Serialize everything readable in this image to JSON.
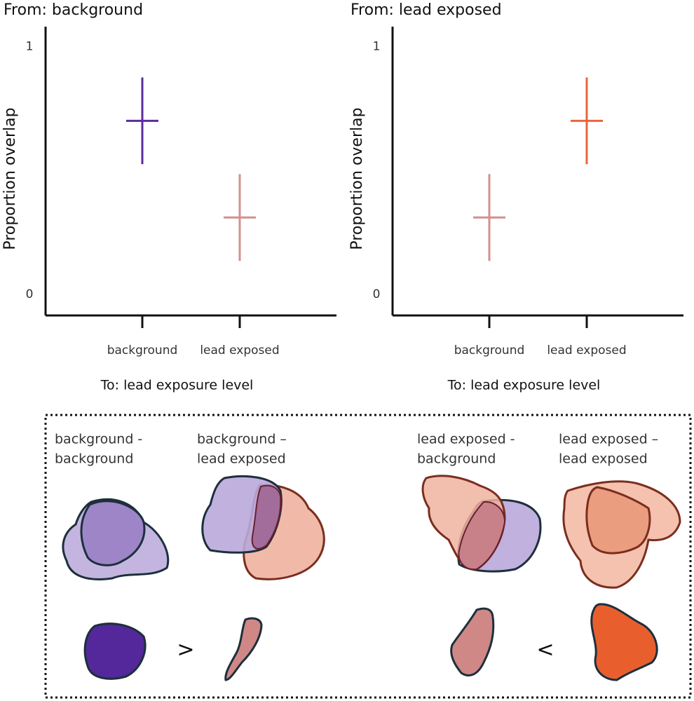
{
  "chart_data": [
    {
      "type": "errorbar",
      "title": "From: background",
      "y_label": "Proportion overlap",
      "x_label": "To: lead exposure level",
      "categories": [
        "background",
        "lead exposed"
      ],
      "values": [
        0.7,
        0.31
      ],
      "errors": [
        0.175,
        0.175
      ],
      "colors": [
        "#5a2d9c",
        "#d3908f"
      ],
      "ylim": [
        -0.085,
        1.08
      ],
      "yticks": [
        0,
        1
      ]
    },
    {
      "type": "errorbar",
      "title": "From: lead exposed",
      "y_label": "Proportion overlap",
      "x_label": "To: lead exposure level",
      "categories": [
        "background",
        "lead exposed"
      ],
      "values": [
        0.31,
        0.7
      ],
      "errors": [
        0.175,
        0.175
      ],
      "colors": [
        "#d3908f",
        "#e8663a"
      ],
      "ylim": [
        -0.085,
        1.08
      ],
      "yticks": [
        0,
        1
      ]
    }
  ],
  "diagram": {
    "labels": [
      [
        "background -",
        "background"
      ],
      [
        "background –",
        "lead exposed"
      ],
      [
        "lead exposed -",
        "background"
      ],
      [
        "lead exposed –",
        "lead exposed"
      ]
    ],
    "comparisons": [
      ">",
      "<"
    ]
  }
}
